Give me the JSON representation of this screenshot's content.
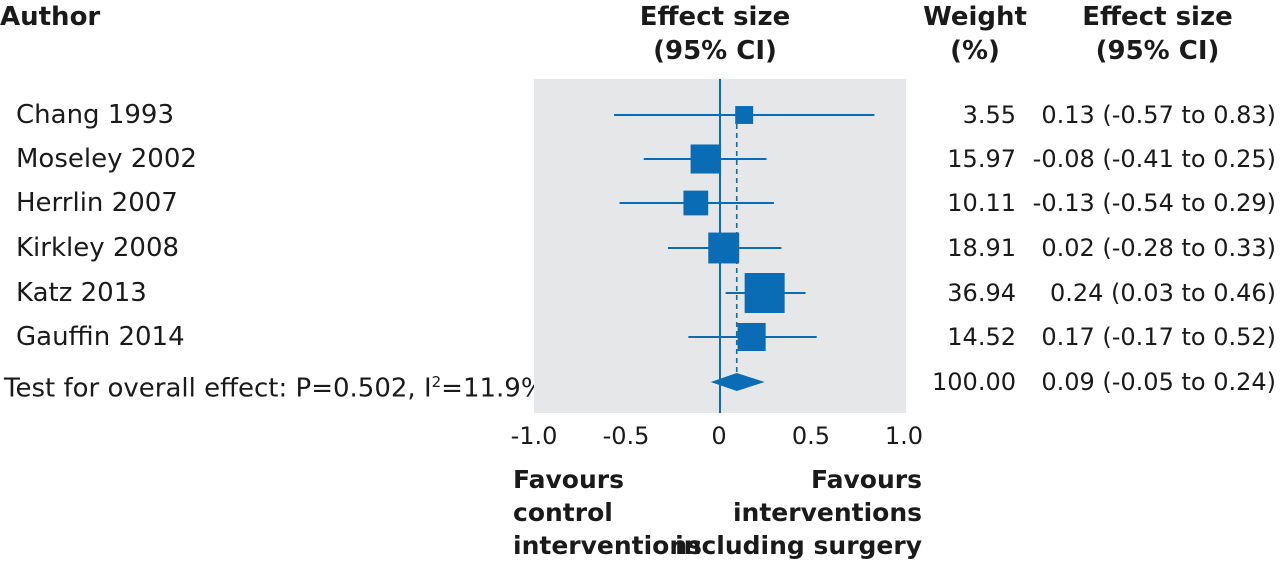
{
  "headers": {
    "author": "Author",
    "effect_line1": "Effect size",
    "effect_line2": "(95% CI)",
    "weight_line1": "Weight",
    "weight_line2": "(%)",
    "ci_line1": "Effect size",
    "ci_line2": "(95% CI)"
  },
  "chart_data": {
    "type": "forest",
    "xlim": [
      -1.0,
      1.0
    ],
    "x_ticks": [
      "-1.0",
      "-0.5",
      "0",
      "0.5",
      "1.0"
    ],
    "x_tick_values": [
      -1.0,
      -0.5,
      0,
      0.5,
      1.0
    ],
    "studies": [
      {
        "label": "Chang 1993",
        "estimate": 0.13,
        "lower": -0.57,
        "upper": 0.83,
        "weight": "3.55",
        "weight_value": 3.55,
        "ci_text": "0.13 (-0.57 to 0.83)"
      },
      {
        "label": "Moseley 2002",
        "estimate": -0.08,
        "lower": -0.41,
        "upper": 0.25,
        "weight": "15.97",
        "weight_value": 15.97,
        "ci_text": "-0.08 (-0.41 to 0.25)"
      },
      {
        "label": "Herrlin 2007",
        "estimate": -0.13,
        "lower": -0.54,
        "upper": 0.29,
        "weight": "10.11",
        "weight_value": 10.11,
        "ci_text": "-0.13 (-0.54 to 0.29)"
      },
      {
        "label": "Kirkley 2008",
        "estimate": 0.02,
        "lower": -0.28,
        "upper": 0.33,
        "weight": "18.91",
        "weight_value": 18.91,
        "ci_text": "0.02 (-0.28 to 0.33)"
      },
      {
        "label": "Katz 2013",
        "estimate": 0.24,
        "lower": 0.03,
        "upper": 0.46,
        "weight": "36.94",
        "weight_value": 36.94,
        "ci_text": "0.24 (0.03 to 0.46)"
      },
      {
        "label": "Gauffin 2014",
        "estimate": 0.17,
        "lower": -0.17,
        "upper": 0.52,
        "weight": "14.52",
        "weight_value": 14.52,
        "ci_text": "0.17 (-0.17 to 0.52)"
      }
    ],
    "overall": {
      "label_prefix": "Test for overall effect: P=0.502, I",
      "label_sup": "2",
      "label_suffix": "=11.9%",
      "estimate": 0.09,
      "lower": -0.05,
      "upper": 0.24,
      "weight": "100.00",
      "ci_text": "0.09 (-0.05 to 0.24)"
    },
    "favours_left": [
      "Favours",
      "control",
      "interventions"
    ],
    "favours_right": [
      "Favours",
      "interventions",
      "including surgery"
    ],
    "colors": {
      "marker": "#0a6cb5",
      "panel": "#e6e7e8",
      "text": "#1a1a1a"
    }
  }
}
